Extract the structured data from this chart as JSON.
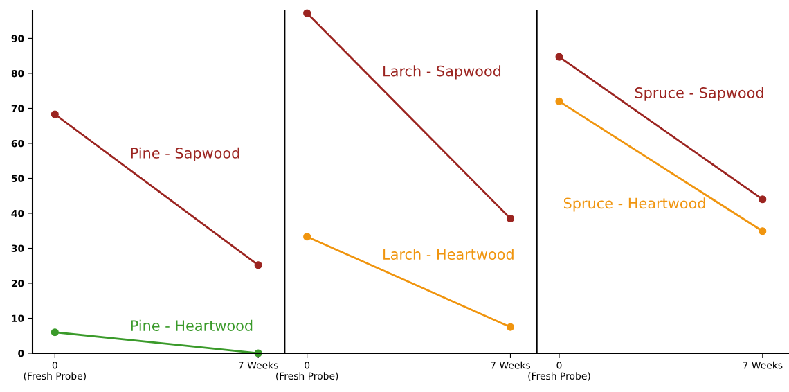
{
  "chart_data": [
    {
      "type": "line",
      "categories": [
        "0\n(Fresh Probe)",
        "7 Weeks"
      ],
      "ylim": [
        0,
        98
      ],
      "yticks": [
        0,
        10,
        20,
        30,
        40,
        50,
        60,
        70,
        80,
        90
      ],
      "marker": "circle",
      "grid": false,
      "legend": false,
      "series": [
        {
          "name": "Pine - Sapwood",
          "color": "#9b2420",
          "values": [
            68.3,
            25.2
          ]
        },
        {
          "name": "Pine - Heartwood",
          "color": "#3a9a2a",
          "values": [
            6.0,
            0
          ]
        }
      ]
    },
    {
      "type": "line",
      "categories": [
        "0\n(Fresh Probe)",
        "7 Weeks"
      ],
      "ylim": [
        0,
        98
      ],
      "yticks": [
        0,
        10,
        20,
        30,
        40,
        50,
        60,
        70,
        80,
        90
      ],
      "tick_labels": "x",
      "marker": "circle",
      "grid": false,
      "legend": false,
      "series": [
        {
          "name": "Larch - Sapwood",
          "color": "#9b2420",
          "values": [
            97.2,
            38.5
          ]
        },
        {
          "name": "Larch - Heartwood",
          "color": "#f0950f",
          "values": [
            33.3,
            7.5
          ]
        }
      ]
    },
    {
      "type": "line",
      "categories": [
        "0\n(Fresh Probe)",
        "7 Weeks"
      ],
      "ylim": [
        0,
        98
      ],
      "yticks": [
        0,
        10,
        20,
        30,
        40,
        50,
        60,
        70,
        80,
        90
      ],
      "tick_labels": "x",
      "marker": "circle",
      "grid": false,
      "legend": false,
      "series": [
        {
          "name": "Spruce - Sapwood",
          "color": "#9b2420",
          "values": [
            84.7,
            44.0
          ]
        },
        {
          "name": "Spruce - Heartwood",
          "color": "#f0950f",
          "values": [
            72.0,
            34.9
          ]
        }
      ]
    }
  ]
}
